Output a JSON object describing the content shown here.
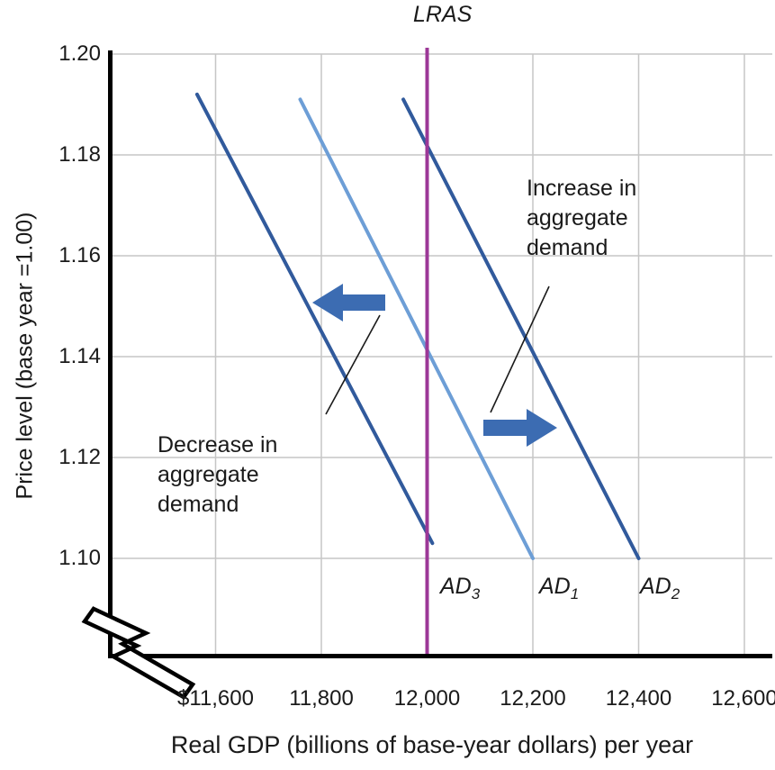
{
  "colors": {
    "ad_dark": "#315a9c",
    "ad_light": "#6d9ed6",
    "lras": "#9c3897",
    "arrow": "#3c6cb2",
    "grid": "#c6c6c6",
    "axis": "#000000",
    "pointer": "#1a1a1a",
    "background": "#ffffff"
  },
  "chart_data": {
    "type": "line",
    "title": "LRAS",
    "xlabel": "Real GDP (billions of base-year dollars) per year",
    "ylabel": "Price level (base year =1.00)",
    "x_tick_labels": [
      "$11,600",
      "11,800",
      "12,000",
      "12,200",
      "12,400",
      "12,600"
    ],
    "x_tick_values": [
      11600,
      11800,
      12000,
      12200,
      12400,
      12600
    ],
    "y_tick_labels": [
      "1.20",
      "1.18",
      "1.16",
      "1.14",
      "1.12",
      "1.10"
    ],
    "y_tick_values": [
      1.2,
      1.18,
      1.16,
      1.14,
      1.12,
      1.1
    ],
    "xlim": [
      11400,
      12650
    ],
    "ylim": [
      1.1,
      1.2
    ],
    "grid": true,
    "axis_break": true,
    "series": [
      {
        "name": "AD3",
        "label": "AD",
        "sub": "3",
        "color": "#315a9c",
        "points": [
          [
            11565,
            1.192
          ],
          [
            12010,
            1.103
          ]
        ]
      },
      {
        "name": "AD1",
        "label": "AD",
        "sub": "1",
        "color": "#6d9ed6",
        "points": [
          [
            11760,
            1.191
          ],
          [
            12200,
            1.1
          ]
        ]
      },
      {
        "name": "AD2",
        "label": "AD",
        "sub": "2",
        "color": "#315a9c",
        "points": [
          [
            11955,
            1.191
          ],
          [
            12400,
            1.1
          ]
        ]
      }
    ],
    "lras": {
      "label": "LRAS",
      "x": 12000,
      "color": "#9c3897"
    },
    "annotations": {
      "increase": {
        "lines": [
          "Increase in",
          "aggregate",
          "demand"
        ],
        "arrow_direction": "right"
      },
      "decrease": {
        "lines": [
          "Decrease in",
          "aggregate",
          "demand"
        ],
        "arrow_direction": "left"
      }
    }
  }
}
